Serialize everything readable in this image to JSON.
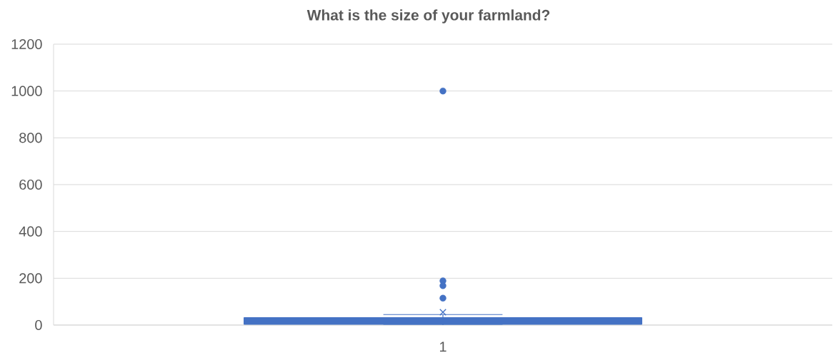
{
  "chart_data": {
    "type": "box",
    "title": "What is the size of your farmland?",
    "categories": [
      "1"
    ],
    "boxes": [
      {
        "low": 0,
        "q1": 3,
        "median": 15,
        "q3": 32,
        "high": 45,
        "mean": 55,
        "outliers": [
          115,
          168,
          189,
          1000
        ]
      }
    ],
    "color": "#4472c4",
    "ylim": [
      0,
      1200
    ],
    "yticks": [
      0,
      200,
      400,
      600,
      800,
      1000,
      1200
    ],
    "grid": "y"
  }
}
